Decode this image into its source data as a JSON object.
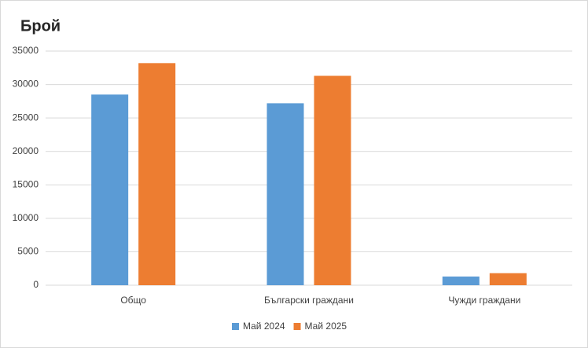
{
  "chart_data": {
    "type": "bar",
    "title": "Брой",
    "categories": [
      "Общо",
      "Български граждани",
      "Чужди граждани"
    ],
    "series": [
      {
        "name": "Май 2024",
        "color": "#5b9bd5",
        "values": [
          28500,
          27200,
          1300
        ]
      },
      {
        "name": "Май 2025",
        "color": "#ed7d31",
        "values": [
          33200,
          31300,
          1800
        ]
      }
    ],
    "ylim": [
      0,
      35000
    ],
    "yticks": [
      0,
      5000,
      10000,
      15000,
      20000,
      25000,
      30000,
      35000
    ],
    "grid": true,
    "legend": "bottom"
  }
}
